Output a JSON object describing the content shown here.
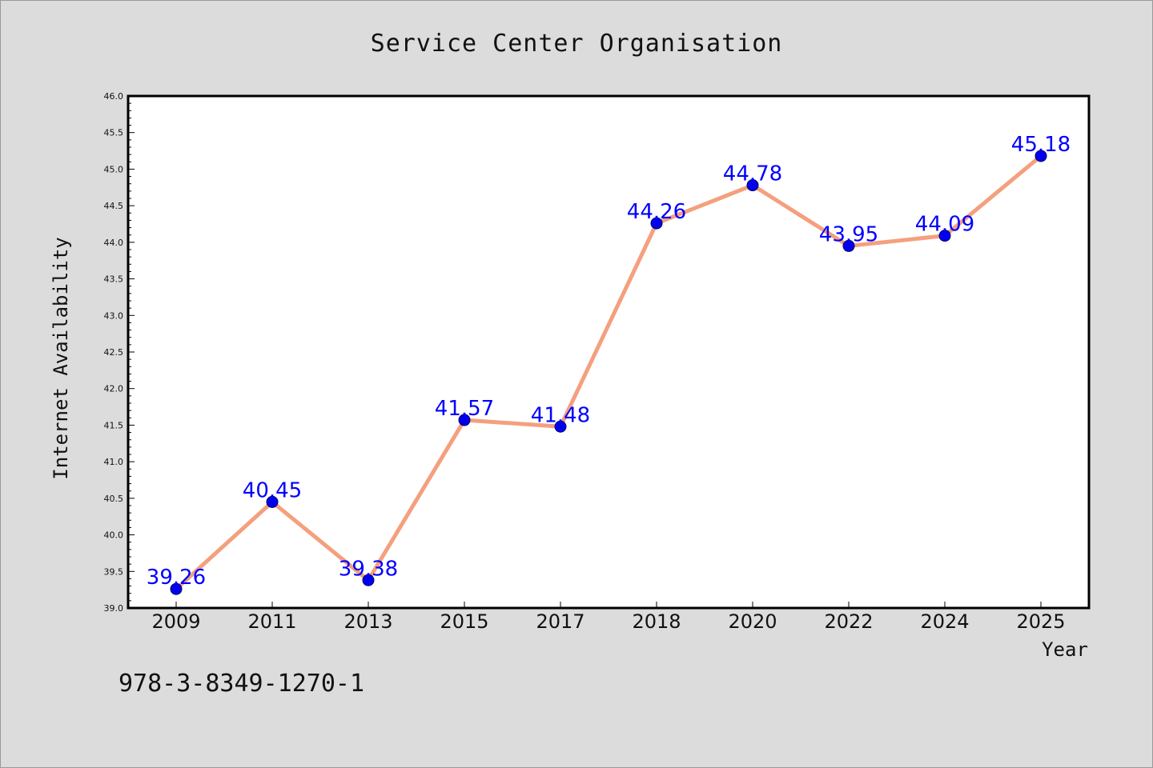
{
  "chart_data": {
    "type": "line",
    "title": "Service Center Organisation",
    "xlabel": "Year",
    "ylabel": "Internet Availability",
    "categories": [
      "2009",
      "2011",
      "2013",
      "2015",
      "2017",
      "2018",
      "2020",
      "2022",
      "2024",
      "2025"
    ],
    "series": [
      {
        "values": [
          39.26,
          40.45,
          39.38,
          41.57,
          41.48,
          44.26,
          44.78,
          43.95,
          44.09,
          45.18
        ],
        "labels": [
          "39.26",
          "40.45",
          "39.38",
          "41.57",
          "41.48",
          "44.26",
          "44.78",
          "43.95",
          "44.09",
          "45.18"
        ]
      }
    ],
    "ylim": [
      39.0,
      46.0
    ],
    "yticks": [
      "39.0",
      "39.5",
      "40.0",
      "40.5",
      "41.0",
      "41.5",
      "42.0",
      "42.5",
      "43.0",
      "43.5",
      "44.0",
      "44.5",
      "45.0",
      "45.5",
      "46.0"
    ],
    "grid": false,
    "line_color": "#f4a07e",
    "marker_color": "#0000ee",
    "label_color": "#0000ff"
  },
  "footer_code": "978-3-8349-1270-1"
}
